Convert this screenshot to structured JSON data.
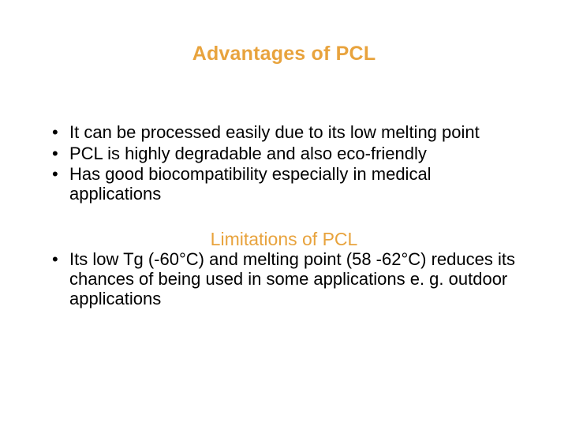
{
  "title": "Advantages of PCL",
  "title_color": "#e8a33d",
  "title_fontsize": 25,
  "title_weight": "bold",
  "body_fontsize": 22,
  "body_color": "#000000",
  "background_color": "#ffffff",
  "advantages": [
    "It can be processed easily due to its low melting point",
    "PCL is highly degradable and also eco-friendly",
    "Has good biocompatibility especially in medical applications"
  ],
  "subheading": "Limitations of PCL",
  "subheading_color": "#e8a33d",
  "subheading_fontsize": 23,
  "limitations": [
    "Its low Tg (-60°C) and melting point (58 -62°C) reduces its chances of being used in some applications e. g. outdoor applications"
  ]
}
